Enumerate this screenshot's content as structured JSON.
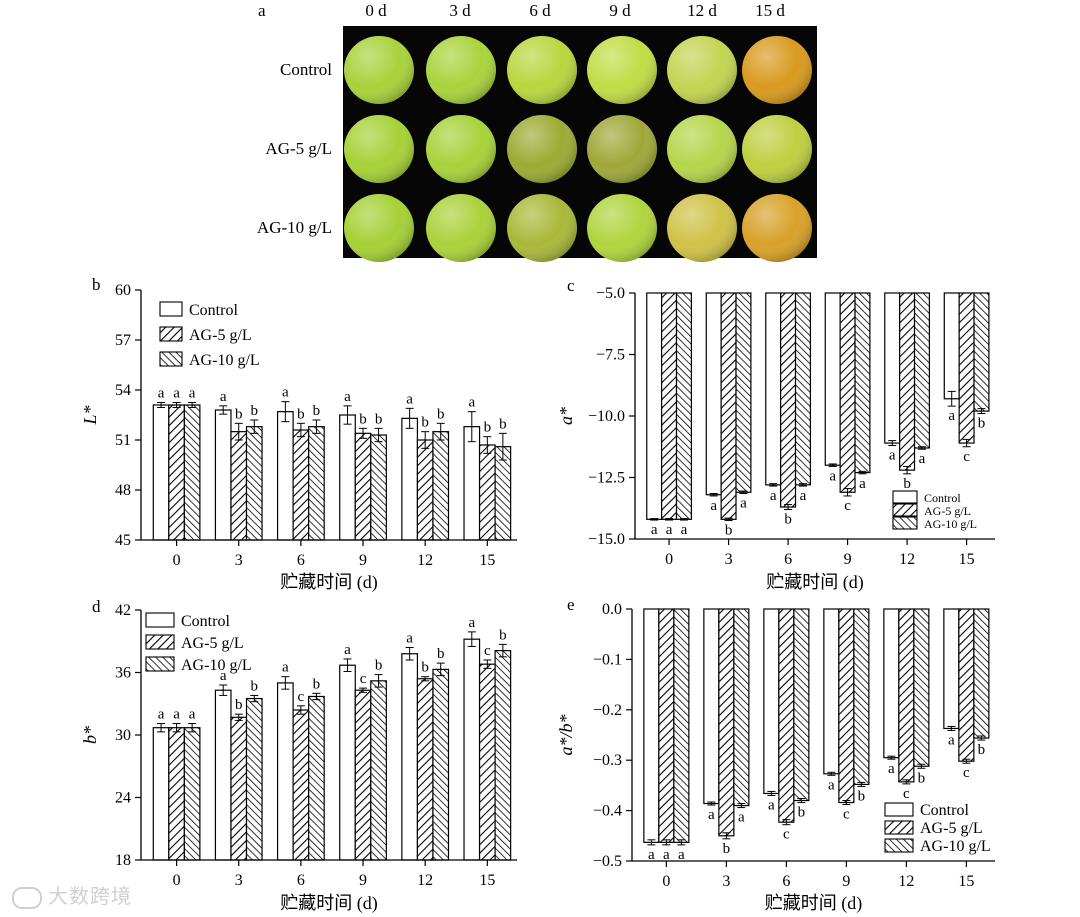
{
  "photo_panel": {
    "label": "a",
    "columns": [
      "0 d",
      "3 d",
      "6 d",
      "9 d",
      "12 d",
      "15 d"
    ],
    "rows": [
      "Control",
      "AG-5 g/L",
      "AG-10 g/L"
    ],
    "fruit_colors": [
      [
        "#a8d23a",
        "#a9d33c",
        "#b9d63e",
        "#c2dc46",
        "#c3d452",
        "#d99a1e"
      ],
      [
        "#a6d136",
        "#a8d23a",
        "#9cab33",
        "#9ea838",
        "#b6d54a",
        "#bfcf40"
      ],
      [
        "#a5d035",
        "#abd13a",
        "#a9b838",
        "#b0d43e",
        "#cfc247",
        "#d8a128"
      ]
    ]
  },
  "watermark": {
    "text": "大数跨境"
  },
  "chart_data": [
    {
      "panel": "b",
      "type": "bar",
      "ylabel": "L*",
      "xlabel": "贮藏时间 (d)",
      "categories": [
        "0",
        "3",
        "6",
        "9",
        "12",
        "15"
      ],
      "ylim": [
        45,
        60
      ],
      "yticks": [
        45,
        48,
        51,
        54,
        57,
        60
      ],
      "legend_position": "top-left",
      "series": [
        {
          "name": "Control",
          "pattern": "none",
          "values": [
            53.1,
            52.8,
            52.7,
            52.5,
            52.3,
            51.8
          ],
          "errors": [
            0.15,
            0.25,
            0.6,
            0.55,
            0.6,
            0.9
          ],
          "letters": [
            "a",
            "a",
            "a",
            "a",
            "a",
            "a"
          ]
        },
        {
          "name": "AG-5 g/L",
          "pattern": "diag-right",
          "values": [
            53.1,
            51.5,
            51.6,
            51.4,
            51.0,
            50.7
          ],
          "errors": [
            0.15,
            0.5,
            0.4,
            0.3,
            0.5,
            0.5
          ],
          "letters": [
            "a",
            "b",
            "b",
            "b",
            "b",
            "b"
          ]
        },
        {
          "name": "AG-10 g/L",
          "pattern": "diag-left",
          "values": [
            53.1,
            51.8,
            51.8,
            51.3,
            51.5,
            50.6
          ],
          "errors": [
            0.15,
            0.4,
            0.4,
            0.4,
            0.5,
            0.8
          ],
          "letters": [
            "a",
            "b",
            "b",
            "b",
            "b",
            "b"
          ]
        }
      ]
    },
    {
      "panel": "c",
      "type": "bar",
      "ylabel": "a*",
      "xlabel": "贮藏时间 (d)",
      "categories": [
        "0",
        "3",
        "6",
        "9",
        "12",
        "15"
      ],
      "ylim": [
        -15,
        -5
      ],
      "yticks": [
        -15.0,
        -12.5,
        -10.0,
        -7.5,
        -5.0
      ],
      "legend_position": "bottom-right",
      "series": [
        {
          "name": "Control",
          "pattern": "none",
          "values": [
            -14.2,
            -13.2,
            -12.8,
            -12.0,
            -11.1,
            -9.3
          ],
          "errors": [
            0.03,
            0.05,
            0.05,
            0.05,
            0.1,
            0.3
          ],
          "letters": [
            "a",
            "a",
            "a",
            "a",
            "a",
            "a"
          ]
        },
        {
          "name": "AG-5 g/L",
          "pattern": "diag-right",
          "values": [
            -14.2,
            -14.2,
            -13.7,
            -13.1,
            -12.2,
            -11.1
          ],
          "errors": [
            0.03,
            0.05,
            0.1,
            0.15,
            0.15,
            0.15
          ],
          "letters": [
            "a",
            "b",
            "b",
            "c",
            "b",
            "c"
          ]
        },
        {
          "name": "AG-10 g/L",
          "pattern": "diag-left",
          "values": [
            -14.2,
            -13.1,
            -12.8,
            -12.3,
            -11.3,
            -9.8
          ],
          "errors": [
            0.03,
            0.05,
            0.05,
            0.05,
            0.05,
            0.1
          ],
          "letters": [
            "a",
            "a",
            "a",
            "a",
            "a",
            "b"
          ]
        }
      ]
    },
    {
      "panel": "d",
      "type": "bar",
      "ylabel": "b*",
      "xlabel": "贮藏时间 (d)",
      "categories": [
        "0",
        "3",
        "6",
        "9",
        "12",
        "15"
      ],
      "ylim": [
        18,
        42
      ],
      "yticks": [
        18,
        24,
        30,
        36,
        42
      ],
      "legend_position": "top-left",
      "series": [
        {
          "name": "Control",
          "pattern": "none",
          "values": [
            30.7,
            34.3,
            35.0,
            36.7,
            37.8,
            39.2
          ],
          "errors": [
            0.4,
            0.5,
            0.6,
            0.6,
            0.6,
            0.7
          ],
          "letters": [
            "a",
            "a",
            "a",
            "a",
            "a",
            "a"
          ]
        },
        {
          "name": "AG-5 g/L",
          "pattern": "diag-right",
          "values": [
            30.7,
            31.7,
            32.4,
            34.3,
            35.4,
            36.8
          ],
          "errors": [
            0.4,
            0.3,
            0.4,
            0.2,
            0.2,
            0.4
          ],
          "letters": [
            "a",
            "b",
            "c",
            "c",
            "b",
            "c"
          ]
        },
        {
          "name": "AG-10 g/L",
          "pattern": "diag-left",
          "values": [
            30.7,
            33.5,
            33.7,
            35.2,
            36.3,
            38.1
          ],
          "errors": [
            0.4,
            0.3,
            0.3,
            0.6,
            0.6,
            0.6
          ],
          "letters": [
            "a",
            "b",
            "b",
            "b",
            "b",
            "b"
          ]
        }
      ]
    },
    {
      "panel": "e",
      "type": "bar",
      "ylabel": "a*/b*",
      "xlabel": "贮藏时间 (d)",
      "categories": [
        "0",
        "3",
        "6",
        "9",
        "12",
        "15"
      ],
      "ylim": [
        -0.5,
        0.0
      ],
      "yticks": [
        -0.5,
        -0.4,
        -0.3,
        -0.2,
        -0.1,
        0.0
      ],
      "legend_position": "bottom-right",
      "series": [
        {
          "name": "Control",
          "pattern": "none",
          "values": [
            -0.463,
            -0.386,
            -0.366,
            -0.327,
            -0.295,
            -0.237
          ],
          "errors": [
            0.005,
            0.003,
            0.004,
            0.003,
            0.003,
            0.004
          ],
          "letters": [
            "a",
            "a",
            "a",
            "a",
            "a",
            "a"
          ]
        },
        {
          "name": "AG-5 g/L",
          "pattern": "diag-right",
          "values": [
            -0.463,
            -0.45,
            -0.423,
            -0.384,
            -0.343,
            -0.302
          ],
          "errors": [
            0.005,
            0.006,
            0.005,
            0.004,
            0.004,
            0.004
          ],
          "letters": [
            "a",
            "b",
            "c",
            "c",
            "c",
            "c"
          ]
        },
        {
          "name": "AG-10 g/L",
          "pattern": "diag-left",
          "values": [
            -0.463,
            -0.39,
            -0.38,
            -0.348,
            -0.312,
            -0.256
          ],
          "errors": [
            0.005,
            0.004,
            0.004,
            0.004,
            0.004,
            0.004
          ],
          "letters": [
            "a",
            "a",
            "b",
            "b",
            "b",
            "b"
          ]
        }
      ]
    }
  ]
}
